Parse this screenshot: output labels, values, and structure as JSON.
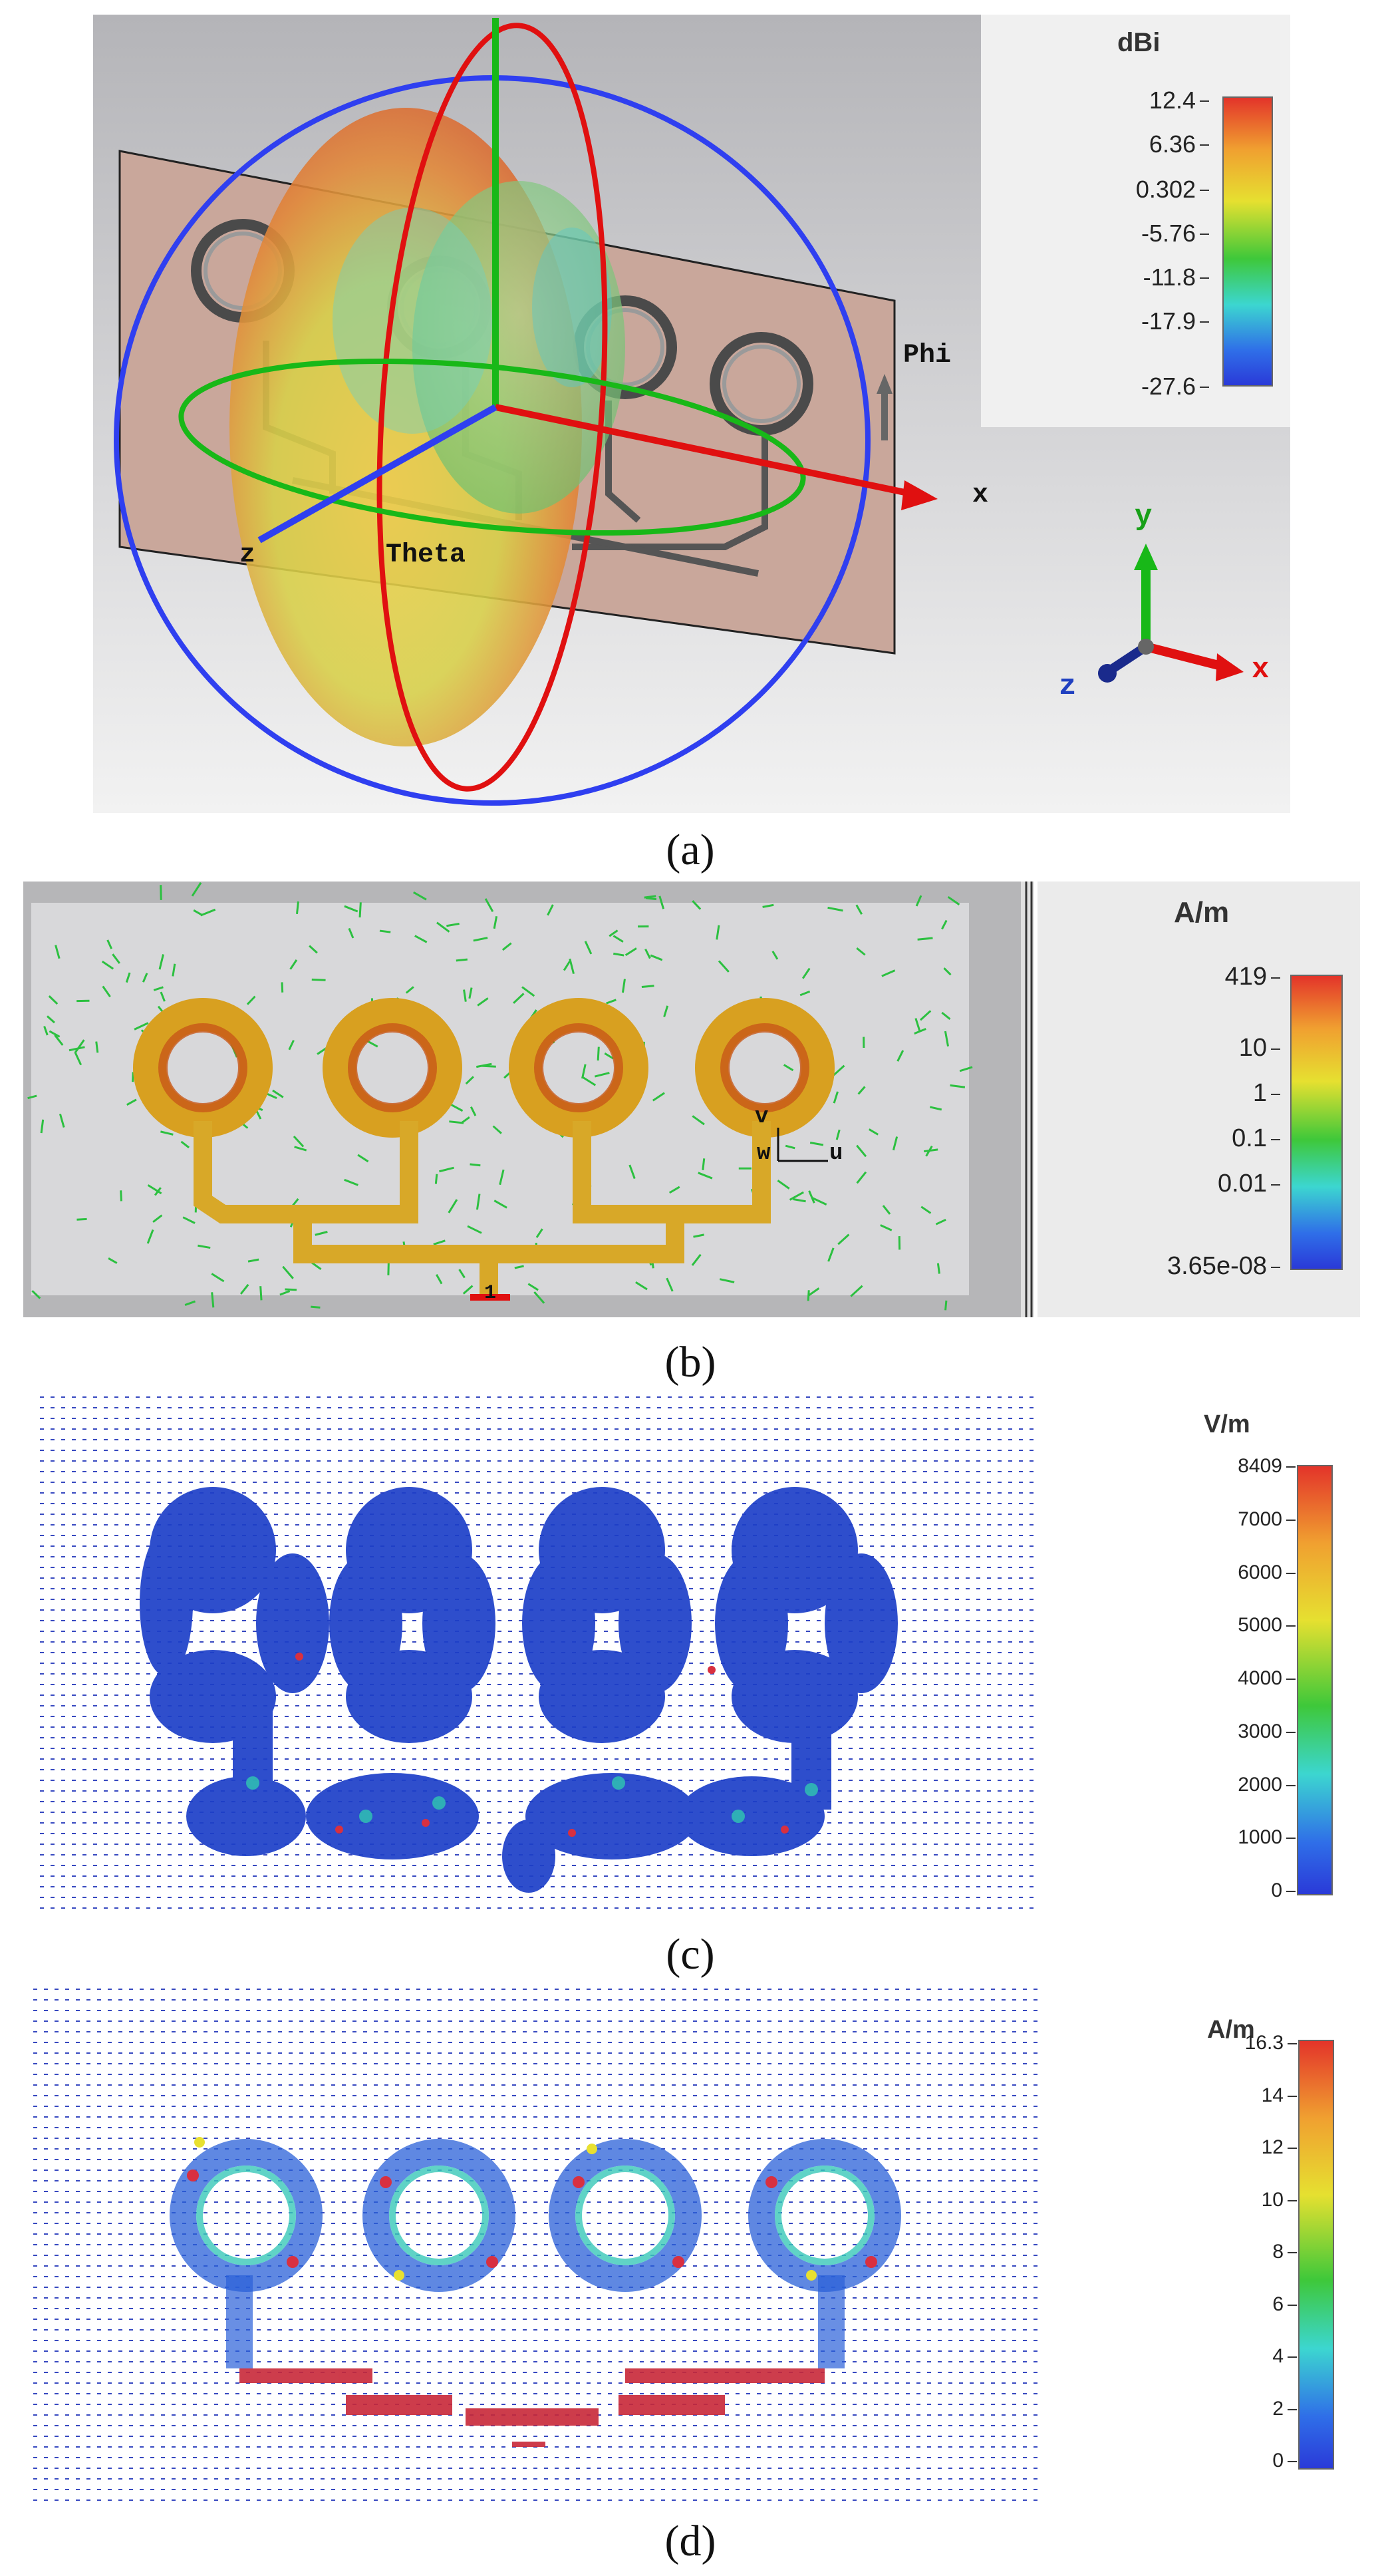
{
  "panels": {
    "a": {
      "caption": "(a)",
      "colorbar": {
        "unit": "dBi",
        "ticks": [
          "12.4",
          "6.36",
          "0.302",
          "-5.76",
          "-11.8",
          "-17.9",
          "-27.6"
        ]
      },
      "labels": {
        "phi": "Phi",
        "theta": "Theta",
        "x": "x",
        "z": "z"
      },
      "triad": {
        "x": "x",
        "y": "y",
        "z": "z"
      }
    },
    "b": {
      "caption": "(b)",
      "colorbar": {
        "unit": "A/m",
        "ticks": [
          "419",
          "10",
          "1",
          "0.1",
          "0.01",
          "3.65e-08"
        ]
      },
      "labels": {
        "v": "v",
        "u": "u",
        "w": "w",
        "port": "1"
      }
    },
    "c": {
      "caption": "(c)",
      "colorbar": {
        "unit": "V/m",
        "ticks": [
          "8409",
          "7000",
          "6000",
          "5000",
          "4000",
          "3000",
          "2000",
          "1000",
          "0"
        ]
      }
    },
    "d": {
      "caption": "(d)",
      "colorbar": {
        "unit": "A/m",
        "ticks": [
          "16.3",
          "14",
          "12",
          "10",
          "8",
          "6",
          "4",
          "2",
          "0"
        ]
      }
    }
  },
  "colors": {
    "substrate": "#c9a79b",
    "blue_axis": "#2f3ff0",
    "red_axis": "#e01010",
    "green_axis": "#18b818",
    "field_blue": "#1536c8",
    "background_gray": "#c6c6c8"
  }
}
